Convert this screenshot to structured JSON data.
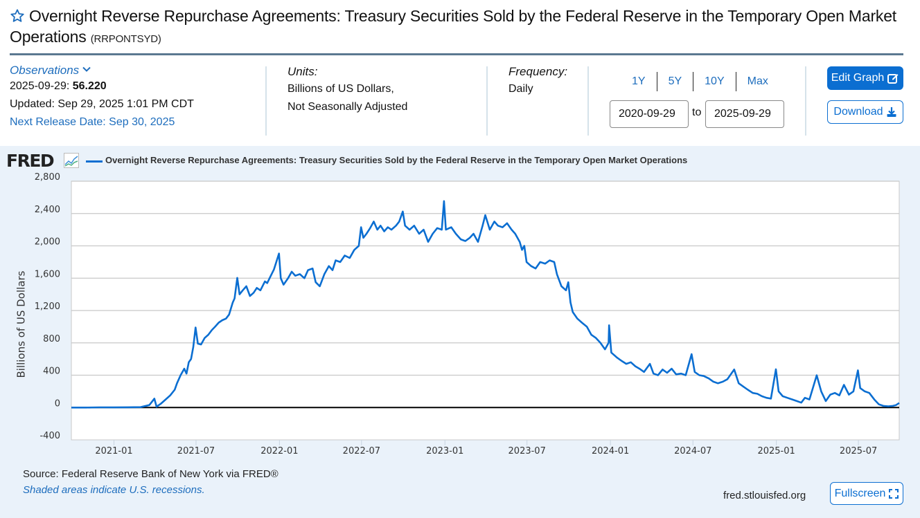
{
  "header": {
    "title": "Overnight Reverse Repurchase Agreements: Treasury Securities Sold by the Federal Reserve in the Temporary Open Market Operations",
    "series_id": "(RRPONTSYD)",
    "favorite_icon": "star-outline-icon"
  },
  "observations": {
    "heading": "Observations",
    "date": "2025-09-29",
    "value": "56.220",
    "updated": "Updated: Sep 29, 2025 1:01 PM CDT",
    "next_release": "Next Release Date: Sep 30, 2025"
  },
  "units": {
    "label": "Units:",
    "line1": "Billions of US Dollars,",
    "line2": "Not Seasonally Adjusted"
  },
  "frequency": {
    "label": "Frequency:",
    "value": "Daily"
  },
  "range": {
    "presets": [
      "1Y",
      "5Y",
      "10Y",
      "Max"
    ],
    "start": "2020-09-29",
    "to_label": "to",
    "end": "2025-09-29"
  },
  "buttons": {
    "edit_graph": "Edit Graph",
    "download": "Download",
    "fullscreen": "Fullscreen"
  },
  "footer": {
    "source": "Source: Federal Reserve Bank of New York via FRED®",
    "recessions_note": "Shaded areas indicate U.S. recessions.",
    "site": "fred.stlouisfed.org"
  },
  "brand": {
    "logo": "FRED",
    "line_color": "#0b6ed1",
    "accent": "#1d6dbd"
  },
  "chart_data": {
    "type": "line",
    "title": "",
    "legend": [
      "Overnight Reverse Repurchase Agreements: Treasury Securities Sold by the Federal Reserve in the Temporary Open Market Operations"
    ],
    "legend_position": "top-left",
    "xlabel": "",
    "ylabel": "Billions of US Dollars",
    "ylim": [
      -400,
      2800
    ],
    "yticks": [
      -400,
      0,
      400,
      800,
      1200,
      1600,
      2000,
      2400,
      2800
    ],
    "ytick_labels": [
      "-400",
      "0",
      "400",
      "800",
      "1,200",
      "1,600",
      "2,000",
      "2,400",
      "2,800"
    ],
    "xlim": [
      "2020-09-29",
      "2025-09-29"
    ],
    "xticks": [
      "2021-01",
      "2021-07",
      "2022-01",
      "2022-07",
      "2023-01",
      "2023-07",
      "2024-01",
      "2024-07",
      "2025-01",
      "2025-07"
    ],
    "grid": true,
    "zero_line": true,
    "series": [
      {
        "name": "RRPONTSYD",
        "points": [
          [
            "2020-09-29",
            0
          ],
          [
            "2020-11-01",
            0
          ],
          [
            "2020-12-01",
            2
          ],
          [
            "2021-01-01",
            1
          ],
          [
            "2021-02-01",
            3
          ],
          [
            "2021-03-01",
            5
          ],
          [
            "2021-03-20",
            30
          ],
          [
            "2021-03-31",
            110
          ],
          [
            "2021-04-05",
            10
          ],
          [
            "2021-04-15",
            50
          ],
          [
            "2021-04-25",
            100
          ],
          [
            "2021-05-05",
            150
          ],
          [
            "2021-05-15",
            220
          ],
          [
            "2021-05-20",
            300
          ],
          [
            "2021-05-28",
            400
          ],
          [
            "2021-06-05",
            480
          ],
          [
            "2021-06-10",
            420
          ],
          [
            "2021-06-15",
            560
          ],
          [
            "2021-06-20",
            600
          ],
          [
            "2021-06-25",
            750
          ],
          [
            "2021-06-30",
            990
          ],
          [
            "2021-07-05",
            790
          ],
          [
            "2021-07-12",
            780
          ],
          [
            "2021-07-20",
            860
          ],
          [
            "2021-07-28",
            900
          ],
          [
            "2021-08-05",
            960
          ],
          [
            "2021-08-12",
            1000
          ],
          [
            "2021-08-20",
            1050
          ],
          [
            "2021-08-28",
            1080
          ],
          [
            "2021-09-05",
            1100
          ],
          [
            "2021-09-12",
            1150
          ],
          [
            "2021-09-20",
            1300
          ],
          [
            "2021-09-24",
            1350
          ],
          [
            "2021-09-30",
            1604
          ],
          [
            "2021-10-05",
            1400
          ],
          [
            "2021-10-12",
            1450
          ],
          [
            "2021-10-20",
            1500
          ],
          [
            "2021-10-28",
            1380
          ],
          [
            "2021-11-05",
            1420
          ],
          [
            "2021-11-12",
            1480
          ],
          [
            "2021-11-20",
            1450
          ],
          [
            "2021-11-30",
            1560
          ],
          [
            "2021-12-05",
            1540
          ],
          [
            "2021-12-12",
            1620
          ],
          [
            "2021-12-20",
            1710
          ],
          [
            "2021-12-31",
            1905
          ],
          [
            "2022-01-04",
            1600
          ],
          [
            "2022-01-10",
            1520
          ],
          [
            "2022-01-20",
            1600
          ],
          [
            "2022-01-28",
            1680
          ],
          [
            "2022-02-05",
            1630
          ],
          [
            "2022-02-15",
            1650
          ],
          [
            "2022-02-25",
            1600
          ],
          [
            "2022-03-05",
            1700
          ],
          [
            "2022-03-15",
            1720
          ],
          [
            "2022-03-22",
            1550
          ],
          [
            "2022-03-31",
            1500
          ],
          [
            "2022-04-10",
            1650
          ],
          [
            "2022-04-20",
            1750
          ],
          [
            "2022-04-28",
            1700
          ],
          [
            "2022-05-05",
            1820
          ],
          [
            "2022-05-15",
            1800
          ],
          [
            "2022-05-25",
            1880
          ],
          [
            "2022-06-05",
            1850
          ],
          [
            "2022-06-15",
            1950
          ],
          [
            "2022-06-25",
            2000
          ],
          [
            "2022-06-30",
            2230
          ],
          [
            "2022-07-05",
            2100
          ],
          [
            "2022-07-12",
            2150
          ],
          [
            "2022-07-20",
            2220
          ],
          [
            "2022-07-28",
            2300
          ],
          [
            "2022-08-05",
            2200
          ],
          [
            "2022-08-12",
            2250
          ],
          [
            "2022-08-20",
            2180
          ],
          [
            "2022-08-28",
            2230
          ],
          [
            "2022-09-05",
            2200
          ],
          [
            "2022-09-15",
            2250
          ],
          [
            "2022-09-22",
            2300
          ],
          [
            "2022-09-30",
            2425
          ],
          [
            "2022-10-05",
            2250
          ],
          [
            "2022-10-15",
            2200
          ],
          [
            "2022-10-25",
            2250
          ],
          [
            "2022-11-05",
            2150
          ],
          [
            "2022-11-15",
            2200
          ],
          [
            "2022-11-25",
            2050
          ],
          [
            "2022-12-05",
            2150
          ],
          [
            "2022-12-15",
            2220
          ],
          [
            "2022-12-25",
            2200
          ],
          [
            "2022-12-30",
            2554
          ],
          [
            "2023-01-03",
            2200
          ],
          [
            "2023-01-15",
            2230
          ],
          [
            "2023-01-25",
            2150
          ],
          [
            "2023-02-05",
            2080
          ],
          [
            "2023-02-15",
            2060
          ],
          [
            "2023-02-25",
            2100
          ],
          [
            "2023-03-05",
            2150
          ],
          [
            "2023-03-15",
            2050
          ],
          [
            "2023-03-25",
            2250
          ],
          [
            "2023-03-31",
            2380
          ],
          [
            "2023-04-10",
            2200
          ],
          [
            "2023-04-20",
            2300
          ],
          [
            "2023-04-28",
            2250
          ],
          [
            "2023-05-08",
            2230
          ],
          [
            "2023-05-18",
            2280
          ],
          [
            "2023-05-28",
            2200
          ],
          [
            "2023-06-05",
            2150
          ],
          [
            "2023-06-15",
            2050
          ],
          [
            "2023-06-20",
            1950
          ],
          [
            "2023-06-25",
            2000
          ],
          [
            "2023-06-30",
            1800
          ],
          [
            "2023-07-10",
            1750
          ],
          [
            "2023-07-20",
            1720
          ],
          [
            "2023-07-30",
            1800
          ],
          [
            "2023-08-10",
            1780
          ],
          [
            "2023-08-20",
            1820
          ],
          [
            "2023-08-30",
            1800
          ],
          [
            "2023-09-05",
            1650
          ],
          [
            "2023-09-15",
            1500
          ],
          [
            "2023-09-25",
            1450
          ],
          [
            "2023-09-30",
            1550
          ],
          [
            "2023-10-05",
            1300
          ],
          [
            "2023-10-10",
            1180
          ],
          [
            "2023-10-20",
            1100
          ],
          [
            "2023-10-30",
            1050
          ],
          [
            "2023-11-10",
            1000
          ],
          [
            "2023-11-20",
            900
          ],
          [
            "2023-11-30",
            860
          ],
          [
            "2023-12-10",
            800
          ],
          [
            "2023-12-20",
            720
          ],
          [
            "2023-12-28",
            800
          ],
          [
            "2023-12-29",
            1018
          ],
          [
            "2024-01-03",
            680
          ],
          [
            "2024-01-15",
            620
          ],
          [
            "2024-01-25",
            580
          ],
          [
            "2024-02-05",
            540
          ],
          [
            "2024-02-15",
            560
          ],
          [
            "2024-02-25",
            510
          ],
          [
            "2024-03-05",
            480
          ],
          [
            "2024-03-15",
            440
          ],
          [
            "2024-03-28",
            540
          ],
          [
            "2024-04-05",
            420
          ],
          [
            "2024-04-15",
            400
          ],
          [
            "2024-04-25",
            470
          ],
          [
            "2024-05-05",
            430
          ],
          [
            "2024-05-15",
            480
          ],
          [
            "2024-05-25",
            410
          ],
          [
            "2024-06-05",
            420
          ],
          [
            "2024-06-15",
            400
          ],
          [
            "2024-06-28",
            660
          ],
          [
            "2024-07-05",
            440
          ],
          [
            "2024-07-15",
            400
          ],
          [
            "2024-07-25",
            390
          ],
          [
            "2024-08-05",
            360
          ],
          [
            "2024-08-15",
            320
          ],
          [
            "2024-08-25",
            300
          ],
          [
            "2024-09-05",
            320
          ],
          [
            "2024-09-15",
            350
          ],
          [
            "2024-09-30",
            470
          ],
          [
            "2024-10-10",
            300
          ],
          [
            "2024-10-20",
            260
          ],
          [
            "2024-10-30",
            220
          ],
          [
            "2024-11-10",
            180
          ],
          [
            "2024-11-20",
            170
          ],
          [
            "2024-11-30",
            140
          ],
          [
            "2024-12-10",
            120
          ],
          [
            "2024-12-20",
            110
          ],
          [
            "2024-12-31",
            473
          ],
          [
            "2025-01-06",
            200
          ],
          [
            "2025-01-15",
            140
          ],
          [
            "2025-01-25",
            120
          ],
          [
            "2025-02-05",
            100
          ],
          [
            "2025-02-15",
            80
          ],
          [
            "2025-02-25",
            60
          ],
          [
            "2025-03-05",
            120
          ],
          [
            "2025-03-15",
            100
          ],
          [
            "2025-03-31",
            399
          ],
          [
            "2025-04-10",
            200
          ],
          [
            "2025-04-20",
            80
          ],
          [
            "2025-04-30",
            160
          ],
          [
            "2025-05-10",
            180
          ],
          [
            "2025-05-20",
            150
          ],
          [
            "2025-05-30",
            280
          ],
          [
            "2025-06-10",
            160
          ],
          [
            "2025-06-20",
            200
          ],
          [
            "2025-06-30",
            460
          ],
          [
            "2025-07-05",
            240
          ],
          [
            "2025-07-15",
            200
          ],
          [
            "2025-07-25",
            180
          ],
          [
            "2025-08-05",
            100
          ],
          [
            "2025-08-15",
            40
          ],
          [
            "2025-08-25",
            20
          ],
          [
            "2025-09-05",
            15
          ],
          [
            "2025-09-15",
            20
          ],
          [
            "2025-09-22",
            30
          ],
          [
            "2025-09-29",
            56.22
          ]
        ]
      }
    ]
  }
}
